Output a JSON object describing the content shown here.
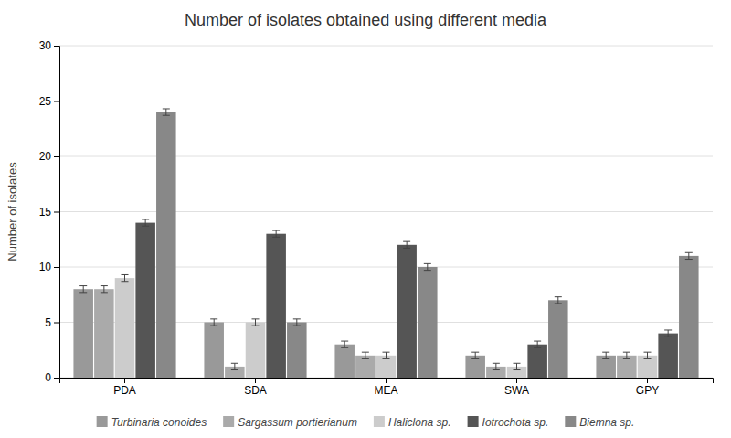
{
  "chart_data": {
    "type": "bar",
    "title": "Number of isolates obtained using different media",
    "y_label": "Number of isolates",
    "categories": [
      "PDA",
      "SDA",
      "MEA",
      "SWA",
      "GPY"
    ],
    "series": [
      {
        "name": "Turbinaria conoides",
        "color": "#999999",
        "values": [
          8,
          5,
          3,
          2,
          2
        ],
        "errors": [
          0.3,
          0.3,
          0.3,
          0.3,
          0.3
        ]
      },
      {
        "name": "Sargassum portierianum",
        "color": "#aaaaaa",
        "values": [
          8,
          1,
          2,
          1,
          2
        ],
        "errors": [
          0.3,
          0.3,
          0.3,
          0.3,
          0.3
        ]
      },
      {
        "name": "Haliclona sp.",
        "color": "#cccccc",
        "values": [
          9,
          5,
          2,
          1,
          2
        ],
        "errors": [
          0.3,
          0.3,
          0.3,
          0.3,
          0.3
        ]
      },
      {
        "name": "Iotrochota sp.",
        "color": "#555555",
        "values": [
          14,
          13,
          12,
          3,
          4
        ],
        "errors": [
          0.3,
          0.3,
          0.3,
          0.3,
          0.3
        ]
      },
      {
        "name": "Biemna sp.",
        "color": "#888888",
        "values": [
          24,
          5,
          10,
          7,
          11
        ],
        "errors": [
          0.3,
          0.3,
          0.3,
          0.3,
          0.3
        ]
      }
    ],
    "ylim": [
      0,
      30
    ],
    "yticks": [
      0,
      5,
      10,
      15,
      20,
      25,
      30
    ],
    "grid": true,
    "legend": "bottom"
  }
}
